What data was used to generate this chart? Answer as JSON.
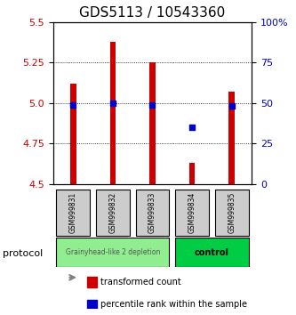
{
  "title": "GDS5113 / 10543360",
  "samples": [
    "GSM999831",
    "GSM999832",
    "GSM999833",
    "GSM999834",
    "GSM999835"
  ],
  "transformed_count_bottom": [
    4.5,
    4.5,
    4.5,
    4.5,
    4.5
  ],
  "transformed_count_top": [
    5.12,
    5.38,
    5.25,
    4.63,
    5.07
  ],
  "percentile_rank": [
    49,
    50,
    49,
    35,
    48
  ],
  "ylim_left": [
    4.5,
    5.5
  ],
  "ylim_right": [
    0,
    100
  ],
  "yticks_left": [
    4.5,
    4.75,
    5.0,
    5.25,
    5.5
  ],
  "yticks_right": [
    0,
    25,
    50,
    75,
    100
  ],
  "groups": [
    {
      "label": "Grainyhead-like 2 depletion",
      "samples": [
        0,
        1,
        2
      ],
      "color": "#90EE90",
      "text_color": "#555555"
    },
    {
      "label": "control",
      "samples": [
        3,
        4
      ],
      "color": "#00CC44",
      "text_color": "#000000"
    }
  ],
  "protocol_label": "protocol",
  "bar_color": "#CC0000",
  "dot_color": "#0000CC",
  "tick_label_color_left": "#CC0000",
  "tick_label_color_right": "#0000CC",
  "background_color": "#ffffff",
  "plot_bg_color": "#ffffff",
  "sample_box_color": "#cccccc",
  "legend_items": [
    {
      "color": "#CC0000",
      "label": "transformed count"
    },
    {
      "color": "#0000CC",
      "label": "percentile rank within the sample"
    }
  ]
}
